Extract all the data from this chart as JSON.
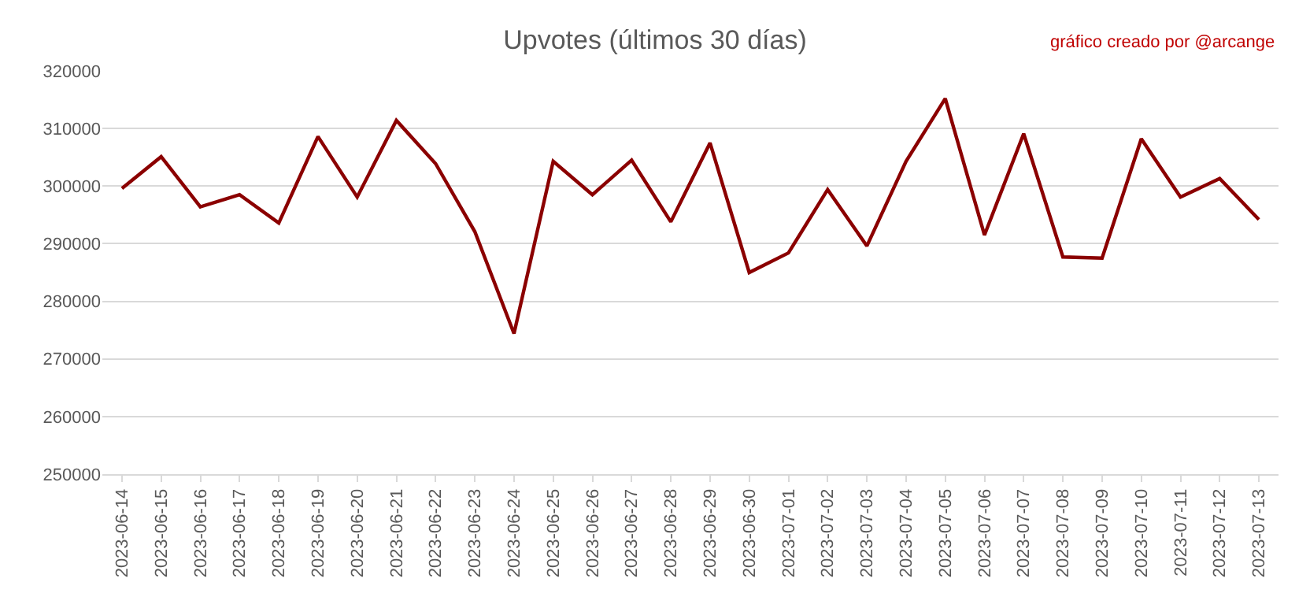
{
  "chart_data": {
    "type": "line",
    "title": "Upvotes (últimos 30 días)",
    "annotations": [
      "gráfico creado por @arcange"
    ],
    "categories": [
      "2023-06-14",
      "2023-06-15",
      "2023-06-16",
      "2023-06-17",
      "2023-06-18",
      "2023-06-19",
      "2023-06-20",
      "2023-06-21",
      "2023-06-22",
      "2023-06-23",
      "2023-06-24",
      "2023-06-25",
      "2023-06-26",
      "2023-06-27",
      "2023-06-28",
      "2023-06-29",
      "2023-06-30",
      "2023-07-01",
      "2023-07-02",
      "2023-07-03",
      "2023-07-04",
      "2023-07-05",
      "2023-07-06",
      "2023-07-07",
      "2023-07-08",
      "2023-07-09",
      "2023-07-10",
      "2023-07-11",
      "2023-07-12",
      "2023-07-13"
    ],
    "series": [
      {
        "color": "#8b0000",
        "values": [
          299600,
          305100,
          296400,
          298500,
          293600,
          308600,
          298100,
          311400,
          303900,
          292100,
          274400,
          304300,
          298500,
          304500,
          293800,
          307500,
          285000,
          288400,
          299400,
          289600,
          304300,
          315200,
          291500,
          309100,
          287700,
          287500,
          308200,
          298100,
          301300,
          294200
        ]
      }
    ],
    "ylim": [
      250000,
      320000
    ],
    "yticks": [
      250000,
      260000,
      270000,
      280000,
      290000,
      300000,
      310000,
      320000
    ],
    "grid": "y",
    "marker": "none",
    "line_style": "solid"
  }
}
